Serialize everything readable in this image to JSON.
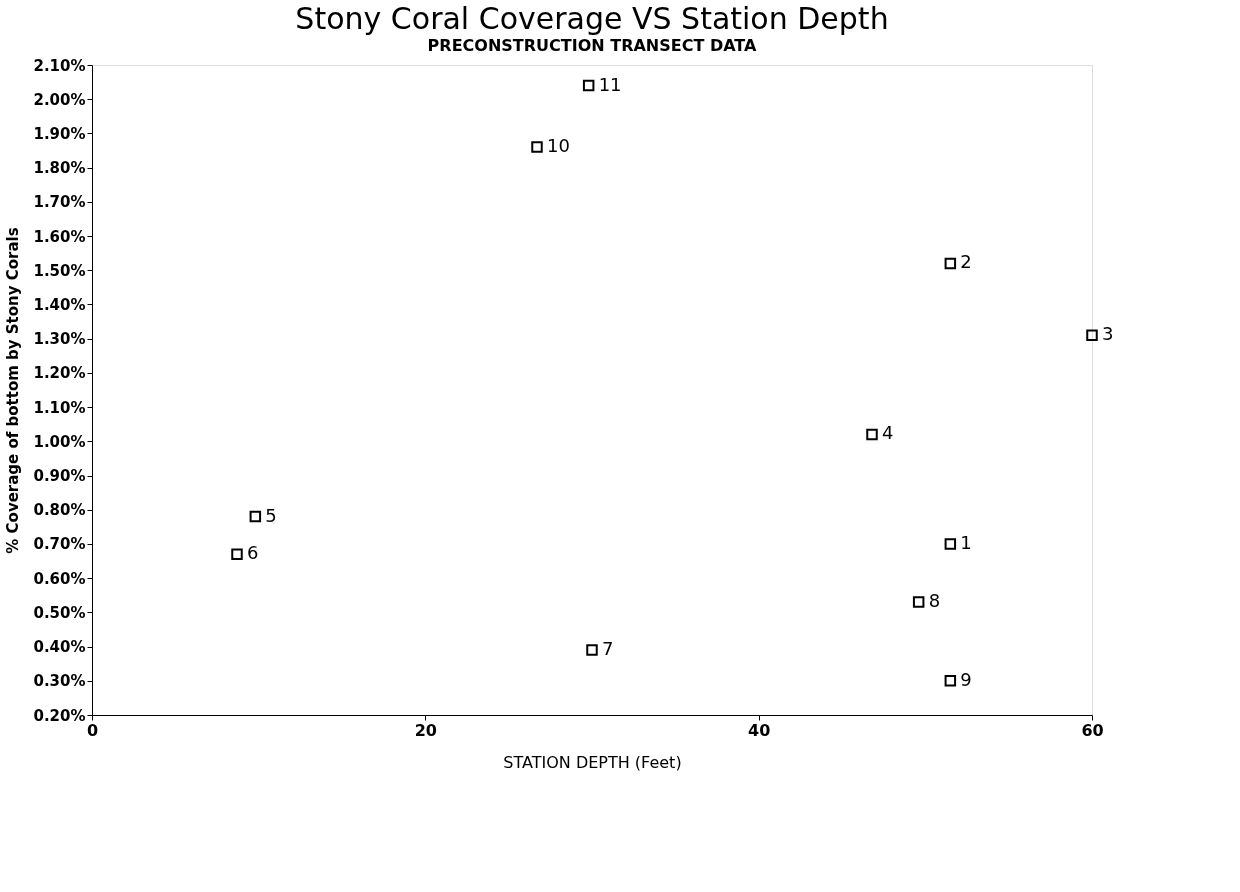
{
  "chart_data": {
    "type": "scatter",
    "title": "Stony Coral Coverage VS Station Depth",
    "subtitle": "PRECONSTRUCTION TRANSECT DATA",
    "xlabel": "STATION DEPTH (Feet)",
    "ylabel": "% Coverage of bottom by Stony Corals",
    "x": [
      51.5,
      51.5,
      60,
      46.8,
      9.8,
      8.7,
      30,
      49.6,
      51.5,
      26.7,
      29.8
    ],
    "series": [
      {
        "color": "#000000",
        "values": [
          0.7,
          1.52,
          1.31,
          1.02,
          0.78,
          0.67,
          0.39,
          0.53,
          0.3,
          1.86,
          2.04
        ]
      }
    ],
    "marker": "square",
    "grid": false,
    "xlim": [
      0,
      60
    ],
    "xticks": [
      0,
      20,
      40,
      60
    ],
    "ylim": [
      0.2,
      2.1
    ],
    "yticks": [
      {
        "value": 0.2,
        "label": "0.20%"
      },
      {
        "value": 0.3,
        "label": "0.30%"
      },
      {
        "value": 0.4,
        "label": "0.40%"
      },
      {
        "value": 0.5,
        "label": "0.50%"
      },
      {
        "value": 0.6,
        "label": "0.60%"
      },
      {
        "value": 0.7,
        "label": "0.70%"
      },
      {
        "value": 0.8,
        "label": "0.80%"
      },
      {
        "value": 0.9,
        "label": "0.90%"
      },
      {
        "value": 1.0,
        "label": "1.00%"
      },
      {
        "value": 1.1,
        "label": "1.10%"
      },
      {
        "value": 1.2,
        "label": "1.20%"
      },
      {
        "value": 1.3,
        "label": "1.30%"
      },
      {
        "value": 1.4,
        "label": "1.40%"
      },
      {
        "value": 1.5,
        "label": "1.50%"
      },
      {
        "value": 1.6,
        "label": "1.60%"
      },
      {
        "value": 1.7,
        "label": "1.70%"
      },
      {
        "value": 1.8,
        "label": "1.80%"
      },
      {
        "value": 1.9,
        "label": "1.90%"
      },
      {
        "value": 2.0,
        "label": "2.00%"
      },
      {
        "value": 2.1,
        "label": "2.10%"
      }
    ],
    "annotations": [
      {
        "text": "1",
        "x": 51.5,
        "y": 0.7
      },
      {
        "text": "2",
        "x": 51.5,
        "y": 1.52
      },
      {
        "text": "3",
        "x": 60,
        "y": 1.31
      },
      {
        "text": "4",
        "x": 46.8,
        "y": 1.02
      },
      {
        "text": "5",
        "x": 9.8,
        "y": 0.78
      },
      {
        "text": "6",
        "x": 8.7,
        "y": 0.67
      },
      {
        "text": "7",
        "x": 30,
        "y": 0.39
      },
      {
        "text": "8",
        "x": 49.6,
        "y": 0.53
      },
      {
        "text": "9",
        "x": 51.5,
        "y": 0.3
      },
      {
        "text": "10",
        "x": 26.7,
        "y": 1.86
      },
      {
        "text": "11",
        "x": 29.8,
        "y": 2.04
      }
    ]
  }
}
